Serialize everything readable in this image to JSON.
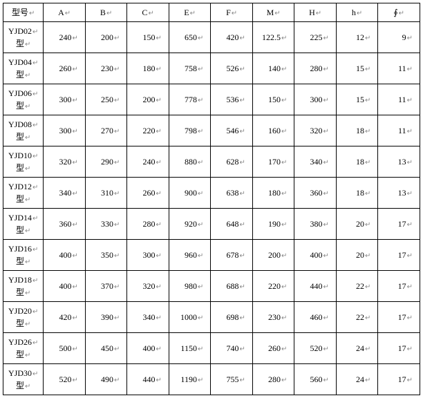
{
  "columns": [
    "型号",
    "A",
    "B",
    "C",
    "E",
    "F",
    "M",
    "H",
    "h",
    "∮"
  ],
  "rows": [
    {
      "model": "YJD02型",
      "v": [
        "240",
        "200",
        "150",
        "650",
        "420",
        "122.5",
        "225",
        "12",
        "9"
      ]
    },
    {
      "model": "YJD04型",
      "v": [
        "260",
        "230",
        "180",
        "758",
        "526",
        "140",
        "280",
        "15",
        "11"
      ]
    },
    {
      "model": "YJD06型",
      "v": [
        "300",
        "250",
        "200",
        "778",
        "536",
        "150",
        "300",
        "15",
        "11"
      ]
    },
    {
      "model": "YJD08型",
      "v": [
        "300",
        "270",
        "220",
        "798",
        "546",
        "160",
        "320",
        "18",
        "11"
      ]
    },
    {
      "model": "YJD10型",
      "v": [
        "320",
        "290",
        "240",
        "880",
        "628",
        "170",
        "340",
        "18",
        "13"
      ]
    },
    {
      "model": "YJD12型",
      "v": [
        "340",
        "310",
        "260",
        "900",
        "638",
        "180",
        "360",
        "18",
        "13"
      ]
    },
    {
      "model": "YJD14型",
      "v": [
        "360",
        "330",
        "280",
        "920",
        "648",
        "190",
        "380",
        "20",
        "17"
      ]
    },
    {
      "model": "YJD16型",
      "v": [
        "400",
        "350",
        "300",
        "960",
        "678",
        "200",
        "400",
        "20",
        "17"
      ]
    },
    {
      "model": "YJD18型",
      "v": [
        "400",
        "370",
        "320",
        "980",
        "688",
        "220",
        "440",
        "22",
        "17"
      ]
    },
    {
      "model": "YJD20型",
      "v": [
        "420",
        "390",
        "340",
        "1000",
        "698",
        "230",
        "460",
        "22",
        "17"
      ]
    },
    {
      "model": "YJD26型",
      "v": [
        "500",
        "450",
        "400",
        "1150",
        "740",
        "260",
        "520",
        "24",
        "17"
      ]
    },
    {
      "model": "YJD30型",
      "v": [
        "520",
        "490",
        "440",
        "1190",
        "755",
        "280",
        "560",
        "24",
        "17"
      ]
    }
  ],
  "return_mark": "↵"
}
